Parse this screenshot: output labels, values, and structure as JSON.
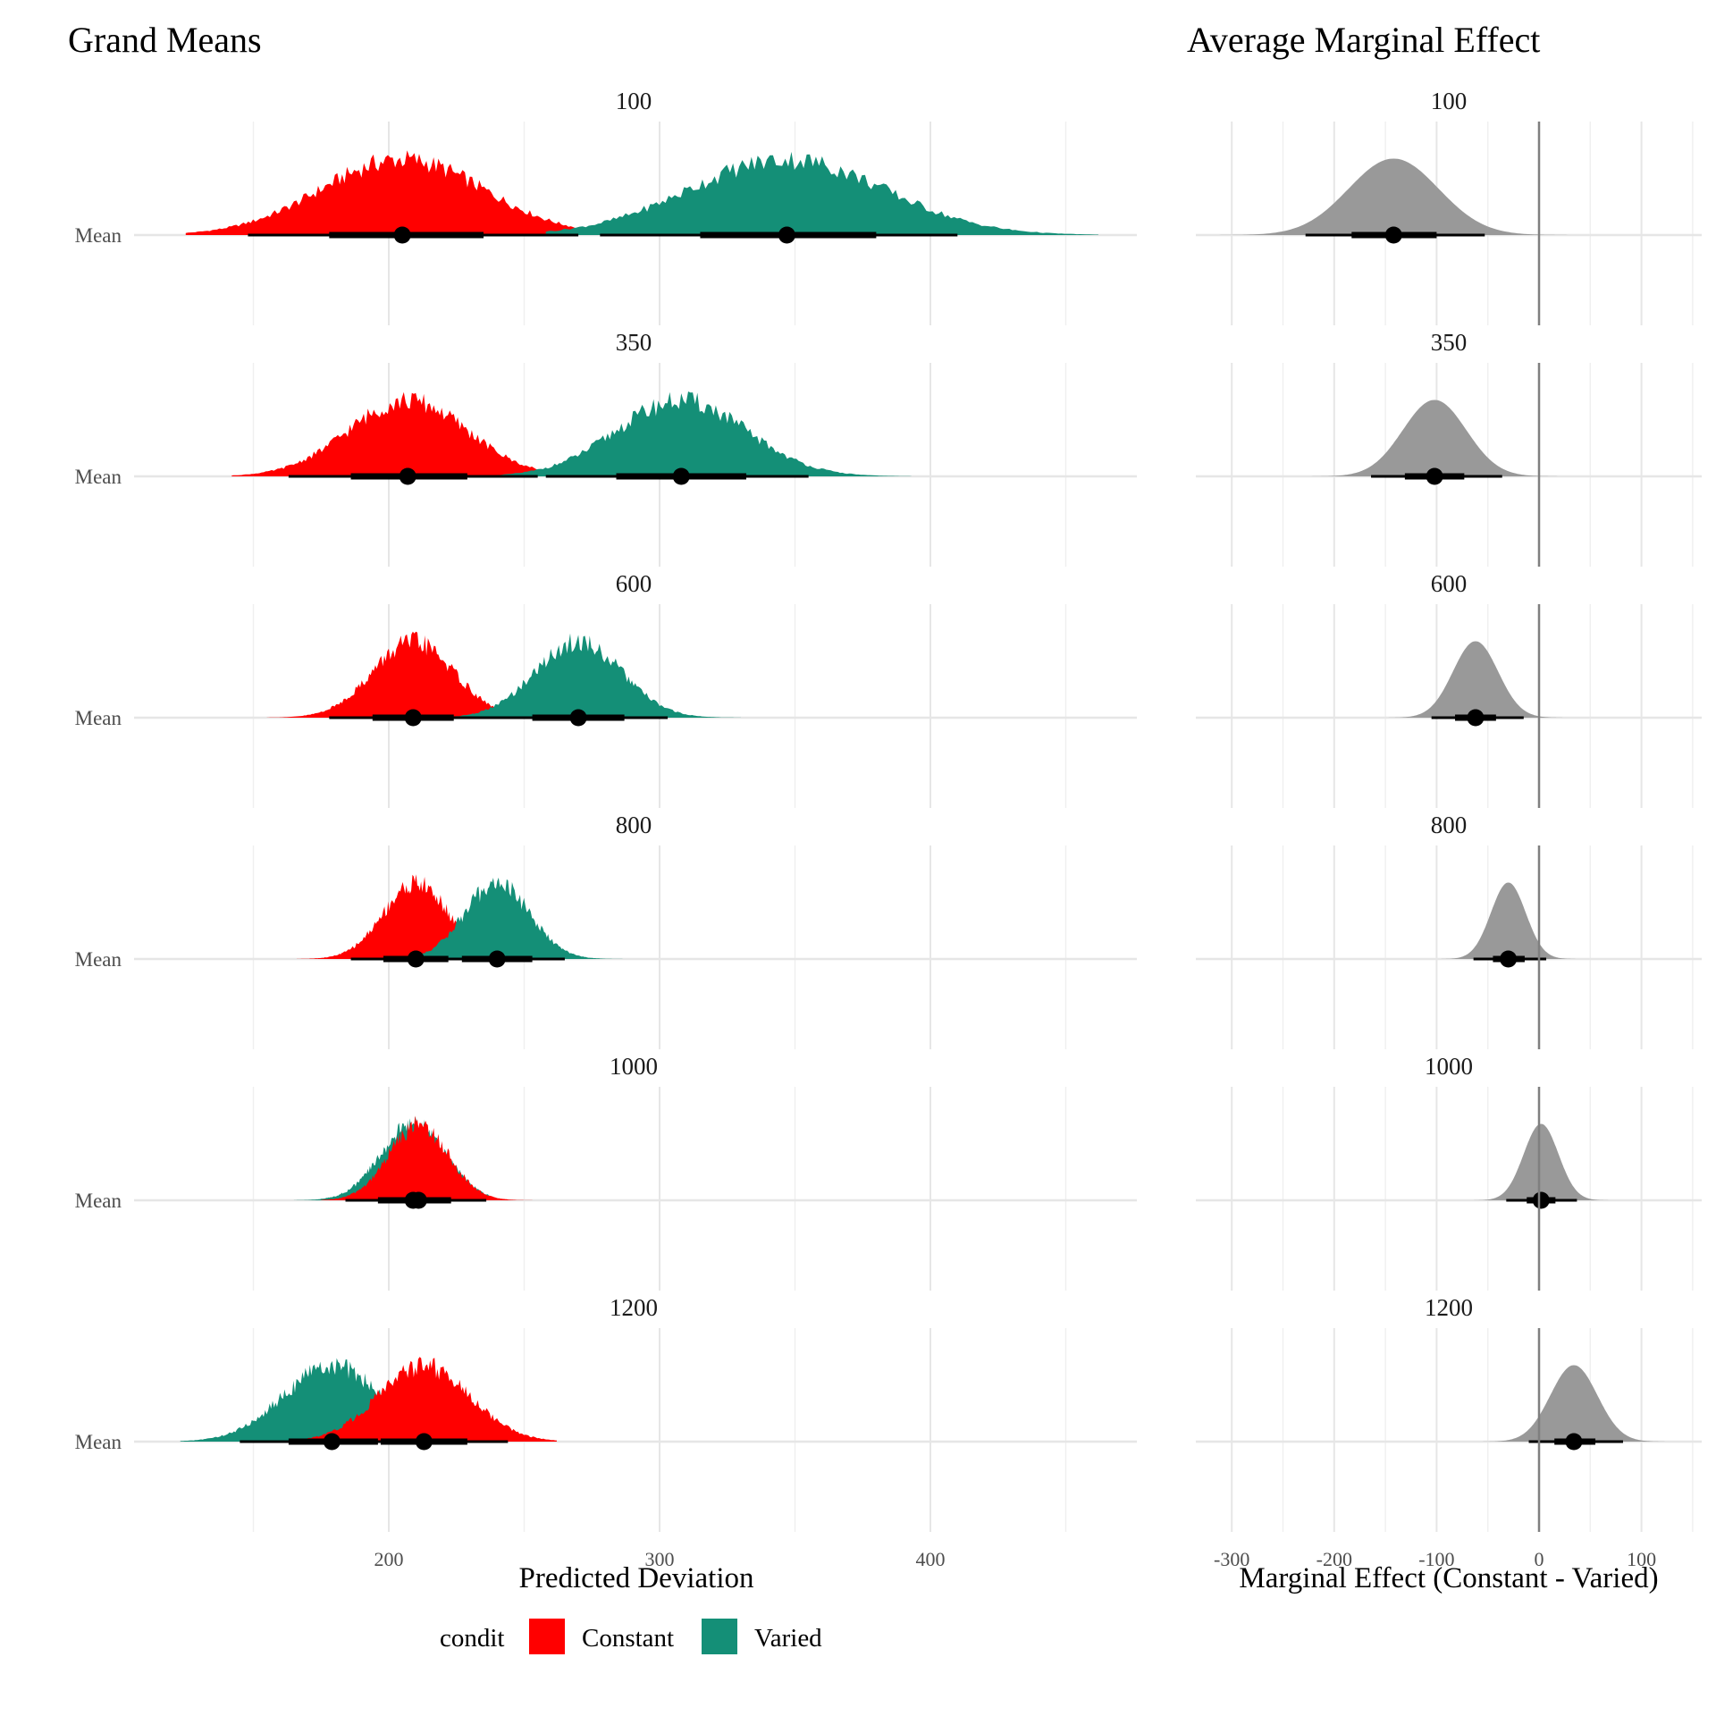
{
  "chart_data": [
    {
      "type": "area",
      "title": "Grand Means",
      "xlabel": "Predicted Deviation",
      "ylabel": "",
      "y_category": "Mean",
      "xlim": [
        105,
        475
      ],
      "x_ticks": [
        200,
        300,
        400
      ],
      "x_minor_grid": [
        150,
        250,
        350,
        450
      ],
      "grid": true,
      "legend": {
        "title": "condit",
        "placement": "bottom",
        "entries": [
          {
            "name": "Constant",
            "color": "#FF0000"
          },
          {
            "name": "Varied",
            "color": "#148F77"
          }
        ]
      },
      "facets": [
        {
          "label": "100",
          "series": [
            {
              "name": "Constant",
              "median": 205,
              "interval66": [
                178,
                235
              ],
              "interval95": [
                148,
                270
              ],
              "range": [
                125,
                285
              ],
              "sd": 30
            },
            {
              "name": "Varied",
              "median": 347,
              "interval66": [
                315,
                380
              ],
              "interval95": [
                278,
                410
              ],
              "range": [
                258,
                462
              ],
              "sd": 36
            }
          ]
        },
        {
          "label": "350",
          "series": [
            {
              "name": "Constant",
              "median": 207,
              "interval66": [
                186,
                229
              ],
              "interval95": [
                163,
                255
              ],
              "range": [
                142,
                275
              ],
              "sd": 22
            },
            {
              "name": "Varied",
              "median": 308,
              "interval66": [
                284,
                332
              ],
              "interval95": [
                258,
                355
              ],
              "range": [
                240,
                393
              ],
              "sd": 24
            }
          ]
        },
        {
          "label": "600",
          "series": [
            {
              "name": "Constant",
              "median": 209,
              "interval66": [
                194,
                224
              ],
              "interval95": [
                178,
                240
              ],
              "range": [
                155,
                255
              ],
              "sd": 15
            },
            {
              "name": "Varied",
              "median": 270,
              "interval66": [
                253,
                287
              ],
              "interval95": [
                236,
                303
              ],
              "range": [
                222,
                330
              ],
              "sd": 16
            }
          ]
        },
        {
          "label": "800",
          "series": [
            {
              "name": "Constant",
              "median": 210,
              "interval66": [
                198,
                222
              ],
              "interval95": [
                186,
                236
              ],
              "range": [
                166,
                247
              ],
              "sd": 12
            },
            {
              "name": "Varied",
              "median": 240,
              "interval66": [
                227,
                253
              ],
              "interval95": [
                215,
                265
              ],
              "range": [
                201,
                290
              ],
              "sd": 12
            }
          ]
        },
        {
          "label": "1000",
          "series": [
            {
              "name": "Varied",
              "median": 209,
              "interval66": [
                196,
                222
              ],
              "interval95": [
                184,
                233
              ],
              "range": [
                165,
                237
              ],
              "sd": 12
            },
            {
              "name": "Constant",
              "median": 211,
              "interval66": [
                200,
                223
              ],
              "interval95": [
                189,
                236
              ],
              "range": [
                175,
                253
              ],
              "sd": 11
            }
          ]
        },
        {
          "label": "1200",
          "series": [
            {
              "name": "Varied",
              "median": 179,
              "interval66": [
                163,
                196
              ],
              "interval95": [
                145,
                215
              ],
              "range": [
                123,
                222
              ],
              "sd": 18
            },
            {
              "name": "Constant",
              "median": 213,
              "interval66": [
                197,
                229
              ],
              "interval95": [
                181,
                244
              ],
              "range": [
                163,
                262
              ],
              "sd": 17
            }
          ]
        }
      ]
    },
    {
      "type": "area",
      "title": "Average Marginal Effect",
      "xlabel": "Marginal Effect (Constant - Varied)",
      "ylabel": "",
      "xlim": [
        -335,
        155
      ],
      "x_ticks": [
        -300,
        -200,
        -100,
        0,
        100
      ],
      "x_tick_labels": [
        "-300",
        "-200",
        "-100",
        "0",
        "100"
      ],
      "x_minor_grid": [
        -250,
        -150,
        -50,
        50,
        150
      ],
      "reference_line": 0,
      "color": "#999999",
      "facets": [
        {
          "label": "100",
          "median": -142,
          "interval66": [
            -183,
            -100
          ],
          "interval95": [
            -228,
            -53
          ],
          "sd": 44
        },
        {
          "label": "350",
          "median": -102,
          "interval66": [
            -131,
            -73
          ],
          "interval95": [
            -164,
            -36
          ],
          "sd": 31
        },
        {
          "label": "600",
          "median": -62,
          "interval66": [
            -82,
            -42
          ],
          "interval95": [
            -105,
            -15
          ],
          "sd": 22
        },
        {
          "label": "800",
          "median": -30,
          "interval66": [
            -45,
            -14
          ],
          "interval95": [
            -64,
            7
          ],
          "sd": 17
        },
        {
          "label": "1000",
          "median": 2,
          "interval66": [
            -12,
            16
          ],
          "interval95": [
            -32,
            37
          ],
          "sd": 17
        },
        {
          "label": "1200",
          "median": 34,
          "interval66": [
            15,
            55
          ],
          "interval95": [
            -10,
            82
          ],
          "sd": 23
        }
      ]
    }
  ]
}
